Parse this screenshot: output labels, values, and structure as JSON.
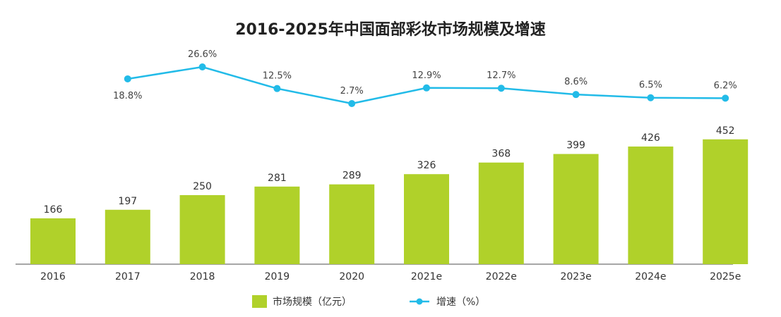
{
  "chart_data": {
    "type": "bar+line",
    "title": "2016-2025年中国面部彩妆市场规模及增速",
    "categories": [
      "2016",
      "2017",
      "2018",
      "2019",
      "2020",
      "2021e",
      "2022e",
      "2023e",
      "2024e",
      "2025e"
    ],
    "series": [
      {
        "name": "市场规模（亿元）",
        "type": "bar",
        "color": "#b0d12a",
        "values": [
          166,
          197,
          250,
          281,
          289,
          326,
          368,
          399,
          426,
          452
        ]
      },
      {
        "name": "增速（%）",
        "type": "line",
        "color": "#22bbe8",
        "values": [
          null,
          18.8,
          26.6,
          12.5,
          2.7,
          12.9,
          12.7,
          8.6,
          6.5,
          6.2
        ],
        "labels": [
          "",
          "18.8%",
          "26.6%",
          "12.5%",
          "2.7%",
          "12.9%",
          "12.7%",
          "8.6%",
          "6.5%",
          "6.2%"
        ]
      }
    ],
    "legend": "bottom",
    "grid": false
  }
}
